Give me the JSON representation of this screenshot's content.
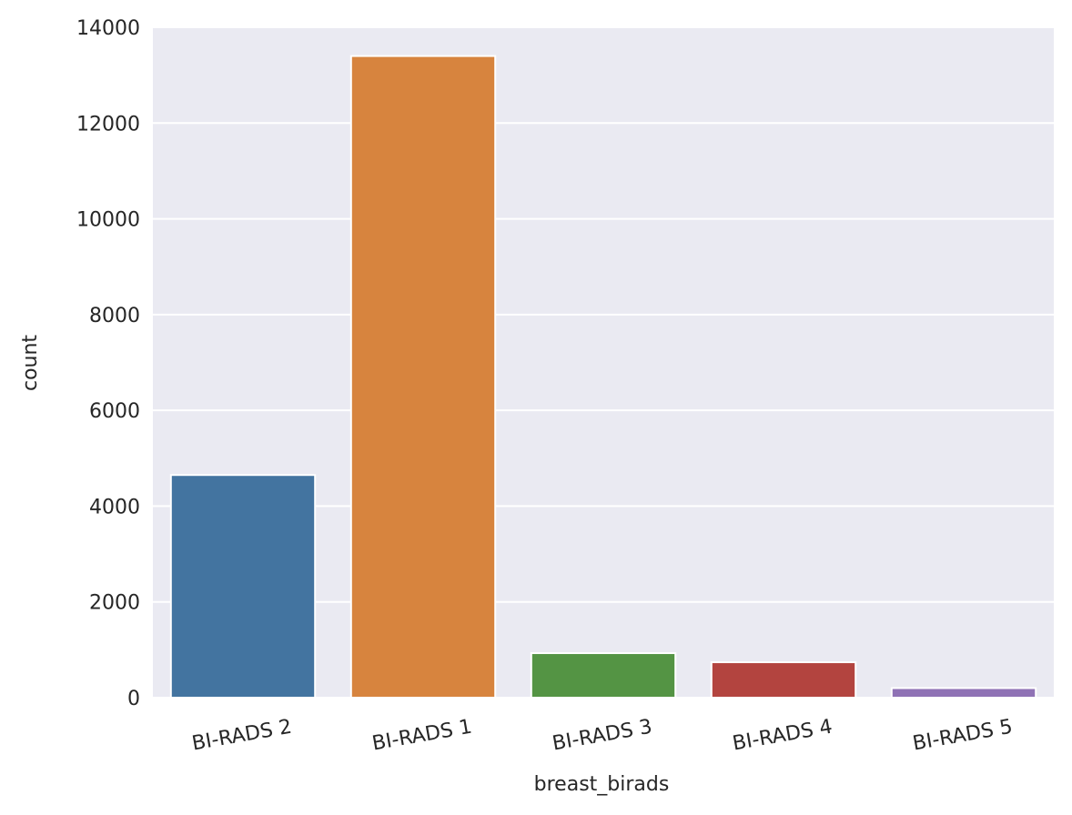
{
  "chart_data": {
    "type": "bar",
    "title": "",
    "xlabel": "breast_birads",
    "ylabel": "count",
    "categories": [
      "BI-RADS 2",
      "BI-RADS 1",
      "BI-RADS 3",
      "BI-RADS 4",
      "BI-RADS 5"
    ],
    "values": [
      4650,
      13400,
      930,
      740,
      200
    ],
    "colors": [
      "#4374a0",
      "#d7843e",
      "#549444",
      "#b3443f",
      "#8f72b5"
    ],
    "ylim": [
      0,
      14000
    ],
    "yticks": [
      0,
      2000,
      4000,
      6000,
      8000,
      10000,
      12000,
      14000
    ],
    "ytick_labels": [
      "0",
      "2000",
      "4000",
      "6000",
      "8000",
      "10000",
      "12000",
      "14000"
    ],
    "xtick_rotation": "slight counter-clockwise tilt",
    "grid": true,
    "background": "#eaeaf2",
    "legend": "none"
  }
}
